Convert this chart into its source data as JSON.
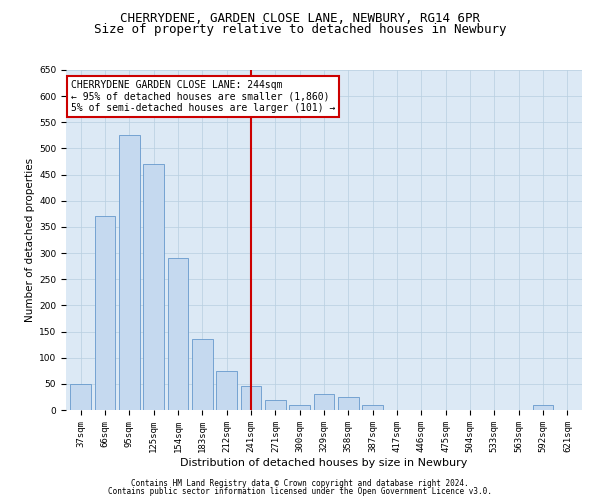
{
  "title1": "CHERRYDENE, GARDEN CLOSE LANE, NEWBURY, RG14 6PR",
  "title2": "Size of property relative to detached houses in Newbury",
  "xlabel": "Distribution of detached houses by size in Newbury",
  "ylabel": "Number of detached properties",
  "categories": [
    "37sqm",
    "66sqm",
    "95sqm",
    "125sqm",
    "154sqm",
    "183sqm",
    "212sqm",
    "241sqm",
    "271sqm",
    "300sqm",
    "329sqm",
    "358sqm",
    "387sqm",
    "417sqm",
    "446sqm",
    "475sqm",
    "504sqm",
    "533sqm",
    "563sqm",
    "592sqm",
    "621sqm"
  ],
  "values": [
    50,
    370,
    525,
    470,
    290,
    135,
    75,
    45,
    20,
    10,
    30,
    25,
    10,
    0,
    0,
    0,
    0,
    0,
    0,
    10,
    0
  ],
  "bar_color": "#c5d9ef",
  "bar_edge_color": "#6699cc",
  "vline_x": 7,
  "vline_color": "#cc0000",
  "annotation_text": "CHERRYDENE GARDEN CLOSE LANE: 244sqm\n← 95% of detached houses are smaller (1,860)\n5% of semi-detached houses are larger (101) →",
  "annotation_box_color": "#ffffff",
  "annotation_box_edge": "#cc0000",
  "ylim": [
    0,
    650
  ],
  "yticks": [
    0,
    50,
    100,
    150,
    200,
    250,
    300,
    350,
    400,
    450,
    500,
    550,
    600,
    650
  ],
  "background_color": "#dce9f5",
  "footer1": "Contains HM Land Registry data © Crown copyright and database right 2024.",
  "footer2": "Contains public sector information licensed under the Open Government Licence v3.0.",
  "title1_fontsize": 9,
  "title2_fontsize": 9,
  "tick_fontsize": 6.5,
  "ylabel_fontsize": 7.5,
  "xlabel_fontsize": 8,
  "footer_fontsize": 5.5,
  "annot_fontsize": 7
}
